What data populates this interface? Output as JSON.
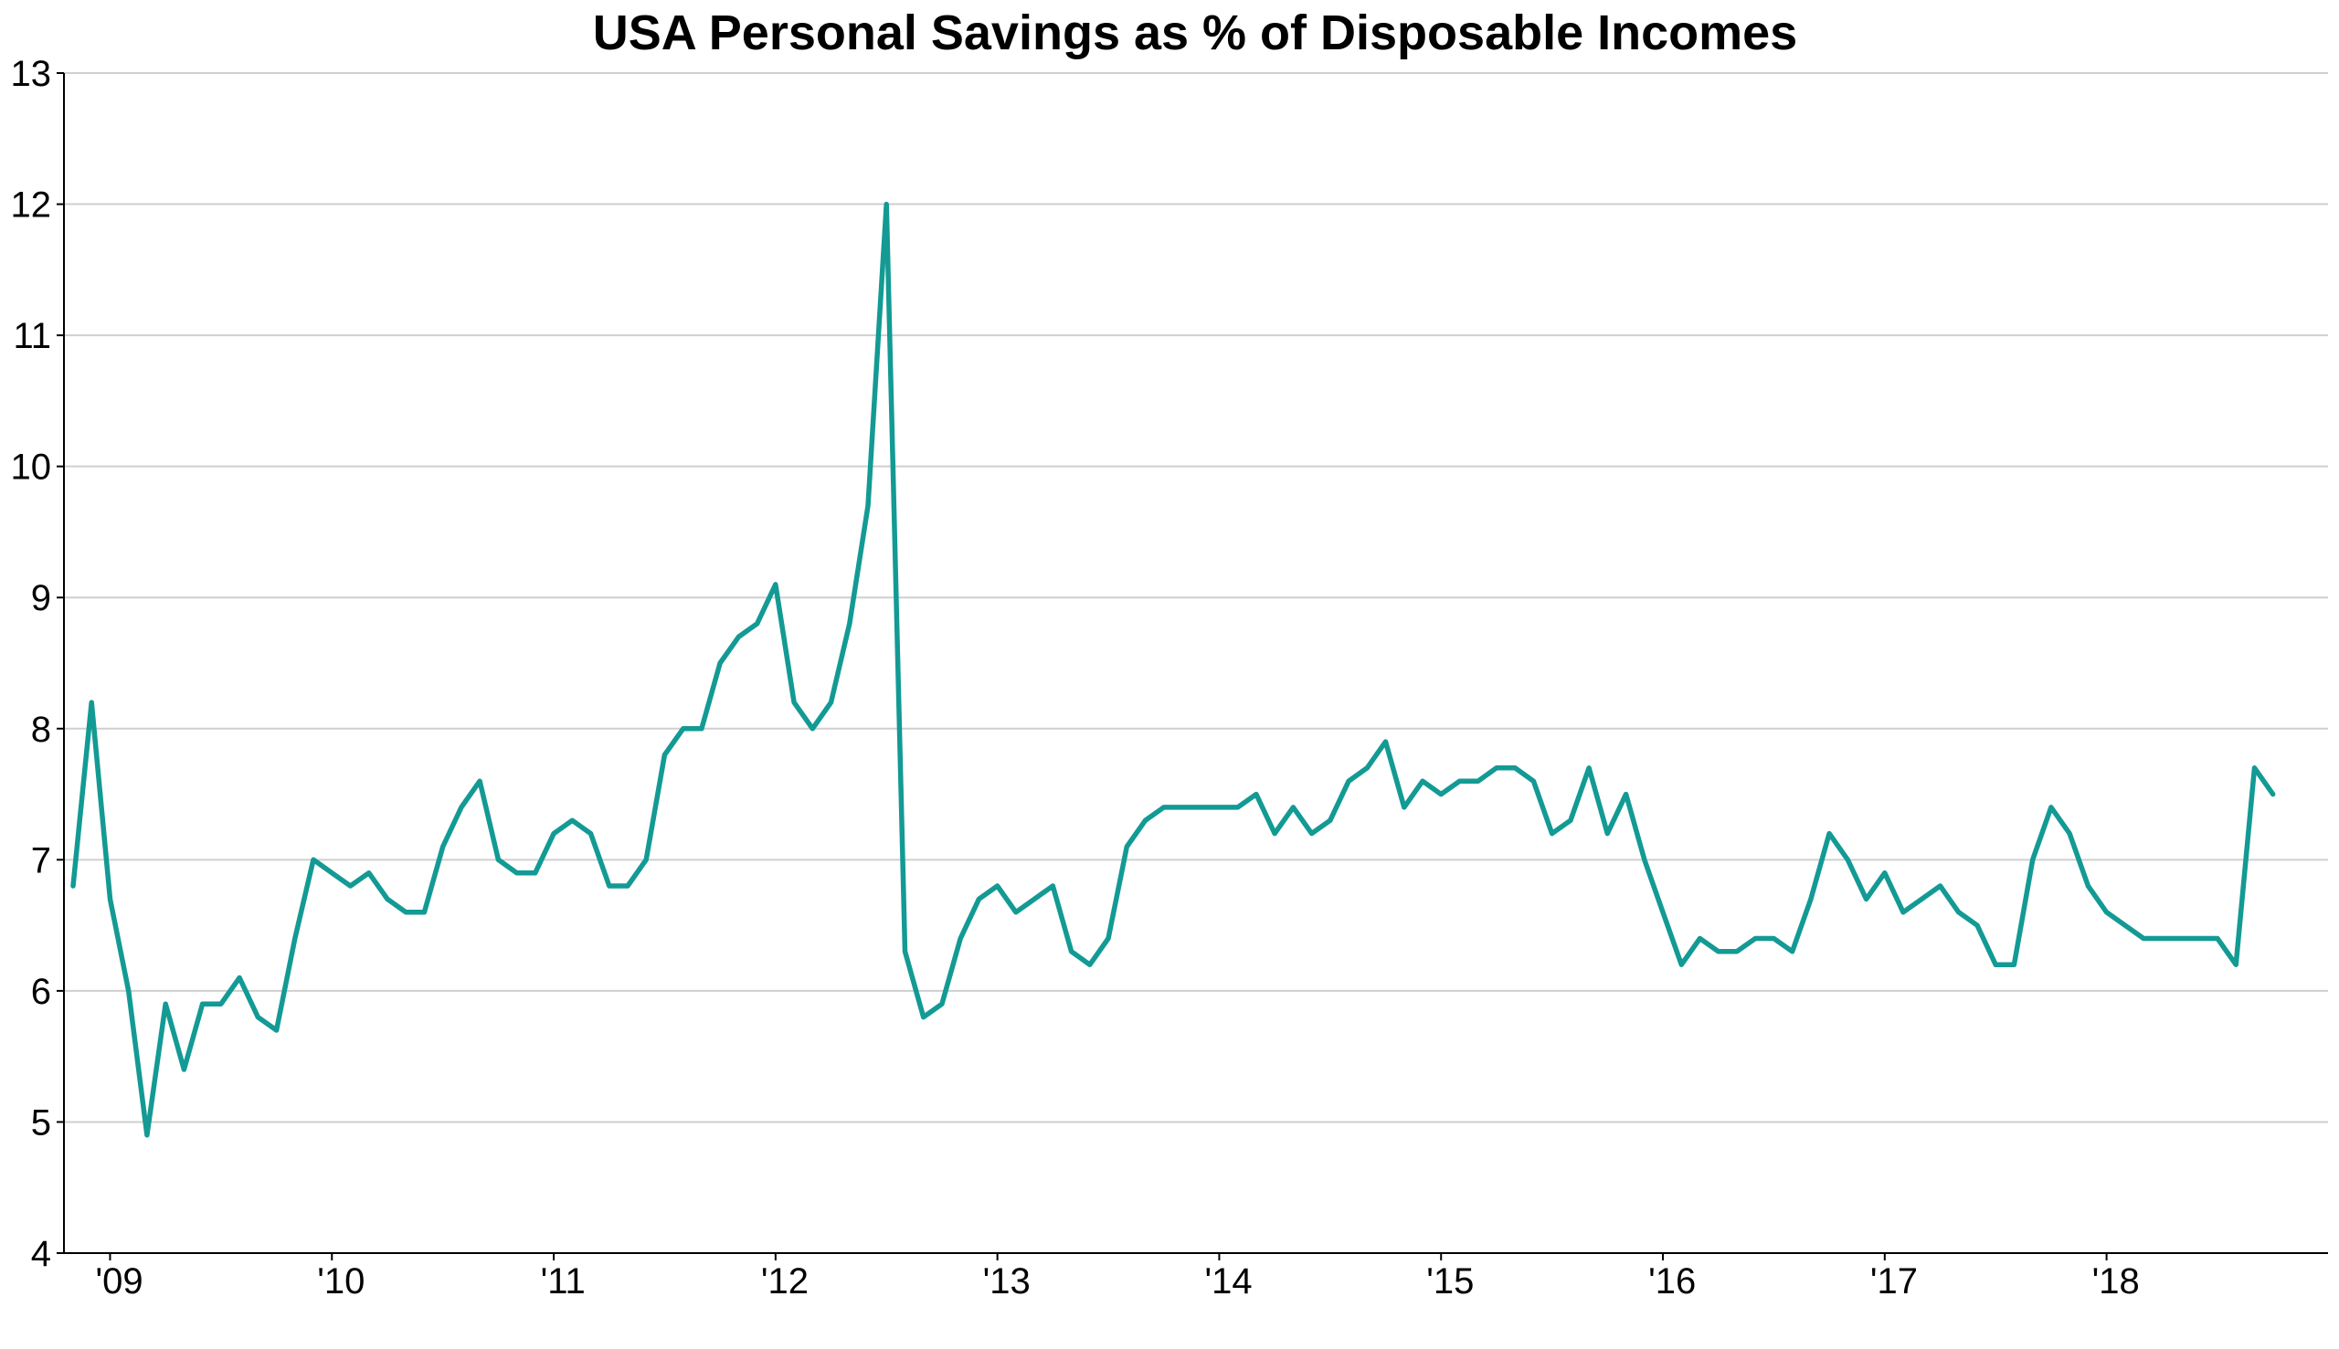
{
  "chart_data": {
    "type": "line",
    "title": "USA Personal Savings as % of Disposable Incomes",
    "xlabel": "",
    "ylabel": "",
    "ylim": [
      4,
      13
    ],
    "yticks": [
      "4",
      "5",
      "6",
      "7",
      "8",
      "9",
      "10",
      "11",
      "12",
      "13"
    ],
    "xticks": [
      {
        "label": "'09",
        "year": 2009
      },
      {
        "label": "'10",
        "year": 2010
      },
      {
        "label": "'11",
        "year": 2011
      },
      {
        "label": "'12",
        "year": 2012
      },
      {
        "label": "'13",
        "year": 2013
      },
      {
        "label": "'14",
        "year": 2014
      },
      {
        "label": "'15",
        "year": 2015
      },
      {
        "label": "'16",
        "year": 2016
      },
      {
        "label": "'17",
        "year": 2017
      },
      {
        "label": "'18",
        "year": 2018
      }
    ],
    "grid": true,
    "legend": "none",
    "x_start": "2008-11",
    "x_end": "2018-07",
    "frequency": "monthly",
    "series": [
      {
        "color": "#139a94",
        "values": [
          6.8,
          8.2,
          6.7,
          6.0,
          4.9,
          5.9,
          5.4,
          5.9,
          5.9,
          6.1,
          5.8,
          5.7,
          6.4,
          7.0,
          6.9,
          6.8,
          6.9,
          6.7,
          6.6,
          6.6,
          7.1,
          7.4,
          7.6,
          7.0,
          6.9,
          6.9,
          7.2,
          7.3,
          7.2,
          6.8,
          6.8,
          7.0,
          7.8,
          8.0,
          8.0,
          8.5,
          8.7,
          8.8,
          9.1,
          8.2,
          8.0,
          8.2,
          8.8,
          9.7,
          12.0,
          6.3,
          5.8,
          5.9,
          6.4,
          6.7,
          6.8,
          6.6,
          6.7,
          6.8,
          6.3,
          6.2,
          6.4,
          7.1,
          7.3,
          7.4,
          7.4,
          7.4,
          7.4,
          7.4,
          7.5,
          7.2,
          7.4,
          7.2,
          7.3,
          7.6,
          7.7,
          7.9,
          7.4,
          7.6,
          7.5,
          7.6,
          7.6,
          7.7,
          7.7,
          7.6,
          7.2,
          7.3,
          7.7,
          7.2,
          7.5,
          7.0,
          6.6,
          6.2,
          6.4,
          6.3,
          6.3,
          6.4,
          6.4,
          6.3,
          6.7,
          7.2,
          7.0,
          6.7,
          6.9,
          6.6,
          6.7,
          6.8,
          6.6,
          6.5,
          6.2,
          6.2,
          7.0,
          7.4,
          7.2,
          6.8,
          6.6,
          6.5,
          6.4,
          6.4,
          6.4,
          6.4,
          6.4,
          6.2,
          7.7,
          7.5
        ]
      }
    ]
  }
}
